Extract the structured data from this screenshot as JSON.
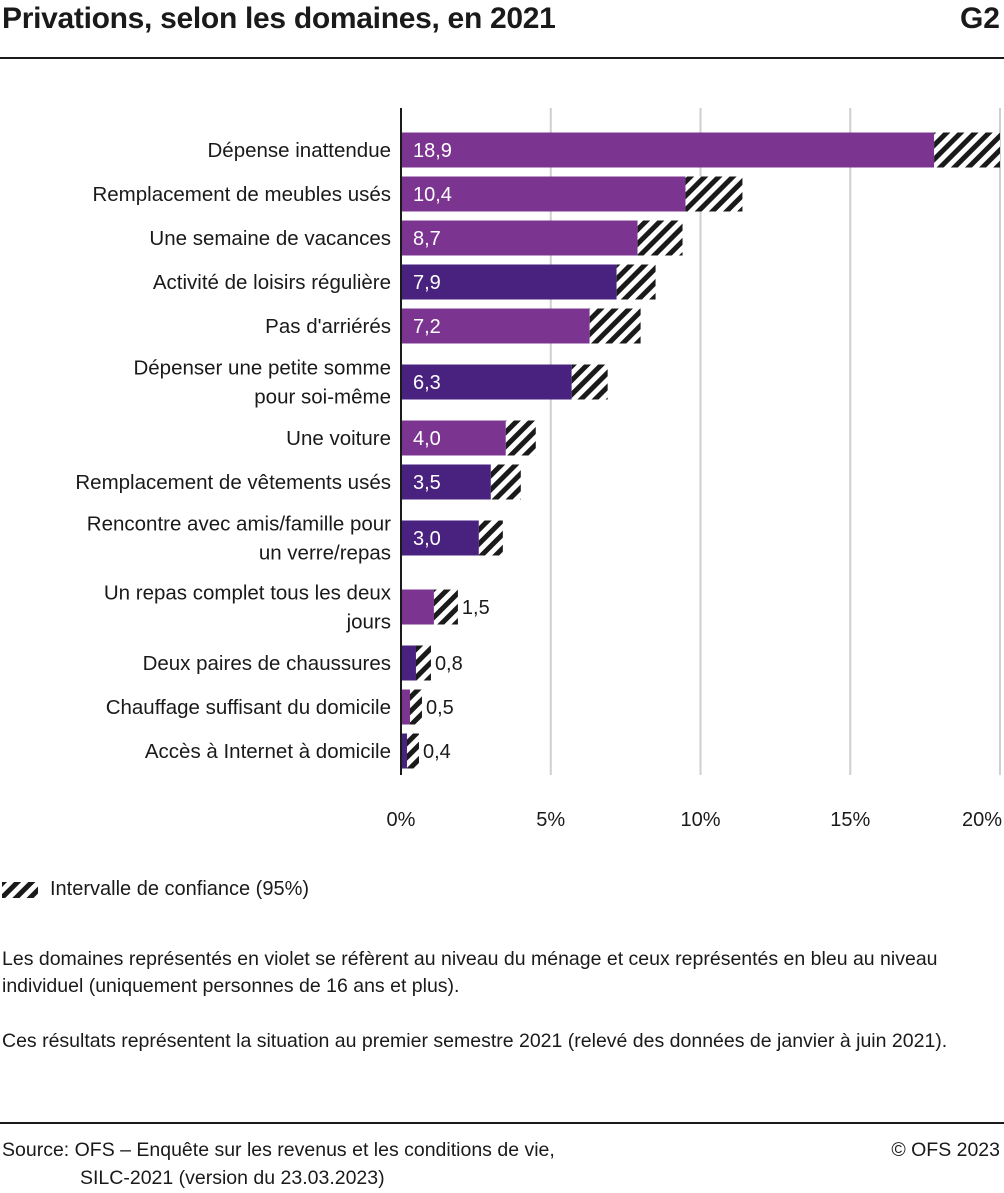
{
  "header": {
    "title": "Privations, selon les domaines, en 2021",
    "code": "G2"
  },
  "colors": {
    "household": "#7b3590",
    "individual": "#48227e",
    "axis": "#1a1a1a",
    "grid": "#cfcfcf"
  },
  "chart_data": {
    "type": "bar",
    "orientation": "horizontal",
    "categories": [
      "Dépense inattendue",
      "Remplacement de meubles usés",
      "Une semaine de vacances",
      "Activité de loisirs régulière",
      "Pas d'arriérés",
      "Dépenser une petite somme pour soi-même",
      "Une voiture",
      "Remplacement de vêtements usés",
      "Rencontre avec amis/famille pour un verre/repas",
      "Un repas complet tous les deux jours",
      "Deux paires de chaussures",
      "Chauffage suffisant du domicile",
      "Accès à Internet à domicile"
    ],
    "category_lines": [
      [
        "Dépense inattendue"
      ],
      [
        "Remplacement de meubles usés"
      ],
      [
        "Une semaine de vacances"
      ],
      [
        "Activité de loisirs régulière"
      ],
      [
        "Pas d'arriérés"
      ],
      [
        "Dépenser une petite somme",
        "pour soi-même"
      ],
      [
        "Une voiture"
      ],
      [
        "Remplacement de vêtements usés"
      ],
      [
        "Rencontre avec amis/famille pour",
        "un verre/repas"
      ],
      [
        "Un repas complet tous les deux",
        "jours"
      ],
      [
        "Deux paires de chaussures"
      ],
      [
        "Chauffage suffisant du domicile"
      ],
      [
        "Accès à Internet à domicile"
      ]
    ],
    "values": [
      18.9,
      10.4,
      8.7,
      7.9,
      7.2,
      6.3,
      4.0,
      3.5,
      3.0,
      1.5,
      0.8,
      0.5,
      0.4
    ],
    "value_labels": [
      "18,9",
      "10,4",
      "8,7",
      "7,9",
      "7,2",
      "6,3",
      "4,0",
      "3,5",
      "3,0",
      "1,5",
      "0,8",
      "0,5",
      "0,4"
    ],
    "ci_low": [
      17.8,
      9.5,
      7.9,
      7.2,
      6.3,
      5.7,
      3.5,
      3.0,
      2.6,
      1.1,
      0.5,
      0.3,
      0.2
    ],
    "ci_high": [
      20.0,
      11.4,
      9.4,
      8.5,
      8.0,
      6.9,
      4.5,
      4.0,
      3.4,
      1.9,
      1.0,
      0.7,
      0.6
    ],
    "level": [
      "household",
      "household",
      "household",
      "individual",
      "household",
      "individual",
      "household",
      "individual",
      "individual",
      "household",
      "individual",
      "household",
      "individual"
    ],
    "x_ticks": [
      0,
      5,
      10,
      15,
      20
    ],
    "x_tick_labels": [
      "0%",
      "5%",
      "10%",
      "15%",
      "20%"
    ],
    "xlim": [
      0,
      20
    ],
    "grid": true,
    "legend": "bottom-left"
  },
  "legend": {
    "ci_label": "Intervalle de confiance (95%)"
  },
  "notes": {
    "note1": "Les domaines représentés en violet se réfèrent au niveau du ménage et ceux représentés en bleu au niveau individuel (uniquement personnes de 16 ans et plus).",
    "note2": "Ces résultats représentent la situation au premier semestre 2021 (relevé des données de janvier à juin 2021)."
  },
  "footer": {
    "source_line1": "Source: OFS – Enquête sur les revenus et les conditions de vie,",
    "source_line2": "SILC-2021 (version du 23.03.2023)",
    "copyright": "© OFS 2023"
  }
}
